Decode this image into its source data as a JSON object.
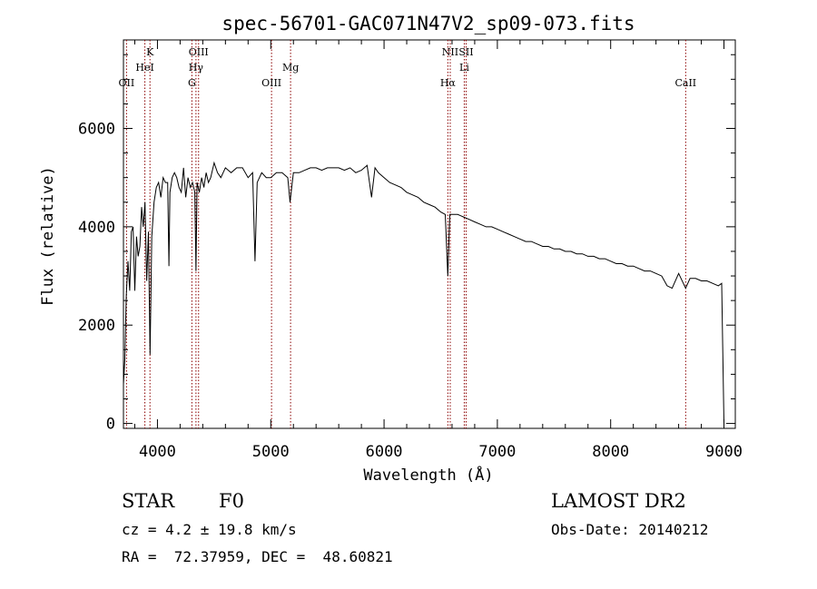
{
  "chart_data": {
    "type": "line",
    "title": "spec-56701-GAC071N47V2_sp09-073.fits",
    "xlabel": "Wavelength (Å)",
    "ylabel": "Flux (relative)",
    "xlim": [
      3700,
      9100
    ],
    "ylim": [
      -100,
      7800
    ],
    "x_ticks": [
      4000,
      5000,
      6000,
      7000,
      8000,
      9000
    ],
    "y_ticks": [
      0,
      2000,
      4000,
      6000
    ],
    "grid": false,
    "line_color": "#000000",
    "marker_color": "#8b0000",
    "series": [
      {
        "x": [
          3700,
          3712,
          3725,
          3740,
          3755,
          3770,
          3785,
          3800,
          3815,
          3830,
          3845,
          3860,
          3875,
          3890,
          3905,
          3920,
          3935,
          3950,
          3970,
          3990,
          4010,
          4030,
          4050,
          4070,
          4090,
          4101,
          4110,
          4130,
          4150,
          4170,
          4190,
          4210,
          4230,
          4250,
          4270,
          4290,
          4310,
          4330,
          4340,
          4350,
          4370,
          4390,
          4410,
          4430,
          4450,
          4470,
          4500,
          4530,
          4560,
          4600,
          4650,
          4700,
          4750,
          4800,
          4840,
          4861,
          4880,
          4920,
          4960,
          5000,
          5050,
          5100,
          5150,
          5170,
          5200,
          5250,
          5300,
          5350,
          5400,
          5450,
          5500,
          5550,
          5600,
          5650,
          5700,
          5750,
          5800,
          5850,
          5890,
          5920,
          5950,
          6000,
          6050,
          6100,
          6150,
          6200,
          6250,
          6300,
          6350,
          6400,
          6450,
          6500,
          6540,
          6563,
          6580,
          6620,
          6650,
          6700,
          6750,
          6800,
          6850,
          6900,
          6950,
          7000,
          7050,
          7100,
          7150,
          7200,
          7250,
          7300,
          7350,
          7400,
          7450,
          7500,
          7550,
          7600,
          7650,
          7700,
          7750,
          7800,
          7850,
          7900,
          7950,
          8000,
          8050,
          8100,
          8150,
          8200,
          8250,
          8300,
          8350,
          8400,
          8450,
          8498,
          8542,
          8600,
          8662,
          8700,
          8750,
          8800,
          8850,
          8900,
          8950,
          8980,
          9000
        ],
        "values": [
          800,
          1300,
          2600,
          3300,
          2700,
          3900,
          4000,
          2700,
          3800,
          3400,
          3600,
          4400,
          4000,
          4500,
          2900,
          3900,
          1400,
          3800,
          4500,
          4800,
          4900,
          4600,
          5000,
          4900,
          4900,
          3200,
          4700,
          5000,
          5100,
          5000,
          4800,
          4700,
          5200,
          4600,
          5000,
          4800,
          4900,
          4700,
          3100,
          4900,
          4700,
          5000,
          4800,
          5100,
          4900,
          5000,
          5300,
          5100,
          5000,
          5200,
          5100,
          5200,
          5200,
          5000,
          5100,
          3300,
          4900,
          5100,
          5000,
          5000,
          5100,
          5100,
          5000,
          4500,
          5100,
          5100,
          5150,
          5200,
          5200,
          5150,
          5200,
          5200,
          5200,
          5150,
          5200,
          5100,
          5150,
          5250,
          4600,
          5200,
          5100,
          5000,
          4900,
          4850,
          4800,
          4700,
          4650,
          4600,
          4500,
          4450,
          4400,
          4300,
          4250,
          3000,
          4250,
          4250,
          4250,
          4200,
          4150,
          4100,
          4050,
          4000,
          4000,
          3950,
          3900,
          3850,
          3800,
          3750,
          3700,
          3700,
          3650,
          3600,
          3600,
          3550,
          3550,
          3500,
          3500,
          3450,
          3450,
          3400,
          3400,
          3350,
          3350,
          3300,
          3250,
          3250,
          3200,
          3200,
          3150,
          3100,
          3100,
          3050,
          3000,
          2800,
          2750,
          3050,
          2750,
          2950,
          2950,
          2900,
          2900,
          2850,
          2800,
          2850,
          0
        ]
      }
    ],
    "spectral_lines": [
      {
        "name": "OII",
        "wavelength": 3727,
        "row": 3
      },
      {
        "name": "K",
        "wavelength": 3934,
        "row": 1
      },
      {
        "name": "HeI",
        "wavelength": 3889,
        "row": 2
      },
      {
        "name": "OIII",
        "wavelength": 4363,
        "row": 1
      },
      {
        "name": "Hγ",
        "wavelength": 4340,
        "row": 2
      },
      {
        "name": "G",
        "wavelength": 4304,
        "row": 3
      },
      {
        "name": "Mg",
        "wavelength": 5175,
        "row": 2
      },
      {
        "name": "OIII",
        "wavelength": 5007,
        "row": 3
      },
      {
        "name": "NII",
        "wavelength": 6584,
        "row": 1
      },
      {
        "name": "Li",
        "wavelength": 6708,
        "row": 2
      },
      {
        "name": "Hα",
        "wavelength": 6563,
        "row": 3
      },
      {
        "name": "SII",
        "wavelength": 6724,
        "row": 1
      },
      {
        "name": "CaII",
        "wavelength": 8662,
        "row": 3
      }
    ]
  },
  "info": {
    "object_class": "STAR",
    "subclass": "F0",
    "survey": "LAMOST DR2",
    "cz": "cz = 4.2 ± 19.8 km/s",
    "obs_date": "Obs-Date: 20140212",
    "radec": "RA =  72.37959, DEC =  48.60821"
  }
}
